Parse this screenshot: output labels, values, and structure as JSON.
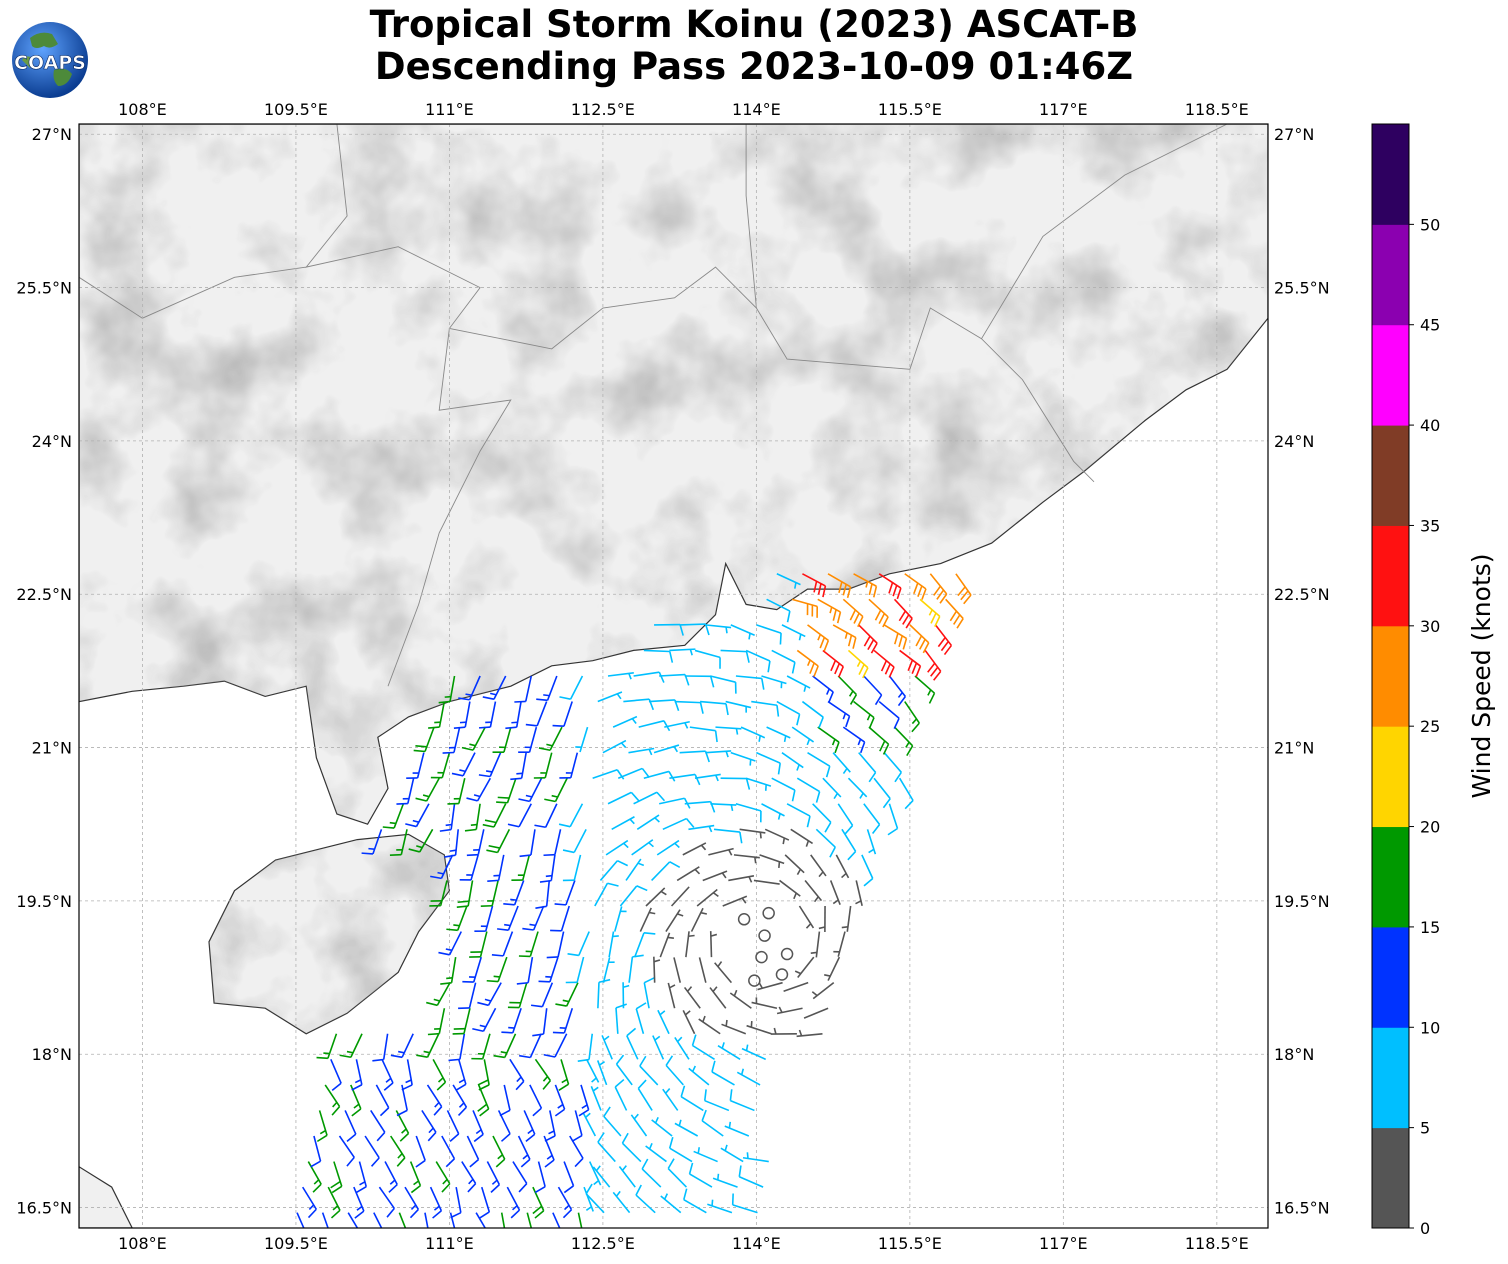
{
  "title": {
    "line1": "Tropical Storm Koinu (2023) ASCAT-B",
    "line2": "Descending Pass 2023-10-09 01:46Z"
  },
  "logo": {
    "text": "COAPS",
    "icon": "globe-logo-icon"
  },
  "map": {
    "lon_ticks": [
      "108°E",
      "109.5°E",
      "111°E",
      "112.5°E",
      "114°E",
      "115.5°E",
      "117°E",
      "118.5°E"
    ],
    "lat_ticks": [
      "27°N",
      "25.5°N",
      "24°N",
      "22.5°N",
      "21°N",
      "19.5°N",
      "18°N",
      "16.5°N"
    ],
    "extent": {
      "lon_min": 107.38,
      "lon_max": 119.0,
      "lat_min": 16.3,
      "lat_max": 27.1
    },
    "gridlines": true,
    "background": "grayscale terrain"
  },
  "colorbar": {
    "label": "Wind Speed (knots)",
    "ticks": [
      "0",
      "5",
      "10",
      "15",
      "20",
      "25",
      "30",
      "35",
      "40",
      "45",
      "50"
    ],
    "bins": [
      {
        "range": [
          0,
          5
        ],
        "color": "#555555"
      },
      {
        "range": [
          5,
          10
        ],
        "color": "#00bfff"
      },
      {
        "range": [
          10,
          15
        ],
        "color": "#0033ff"
      },
      {
        "range": [
          15,
          20
        ],
        "color": "#009900"
      },
      {
        "range": [
          20,
          25
        ],
        "color": "#ffd500"
      },
      {
        "range": [
          25,
          30
        ],
        "color": "#ff8c00"
      },
      {
        "range": [
          30,
          35
        ],
        "color": "#ff1111"
      },
      {
        "range": [
          35,
          40
        ],
        "color": "#803c26"
      },
      {
        "range": [
          40,
          45
        ],
        "color": "#ff00ff"
      },
      {
        "range": [
          45,
          50
        ],
        "color": "#8b00b0"
      },
      {
        "range": [
          50,
          55
        ],
        "color": "#2e0060"
      }
    ]
  },
  "wind_field": {
    "description_units": "knots",
    "calm_points": [
      [
        113.88,
        19.32
      ],
      [
        114.12,
        19.38
      ],
      [
        114.08,
        19.16
      ],
      [
        114.3,
        18.98
      ],
      [
        114.05,
        18.95
      ],
      [
        113.98,
        18.72
      ],
      [
        114.25,
        18.78
      ]
    ]
  }
}
